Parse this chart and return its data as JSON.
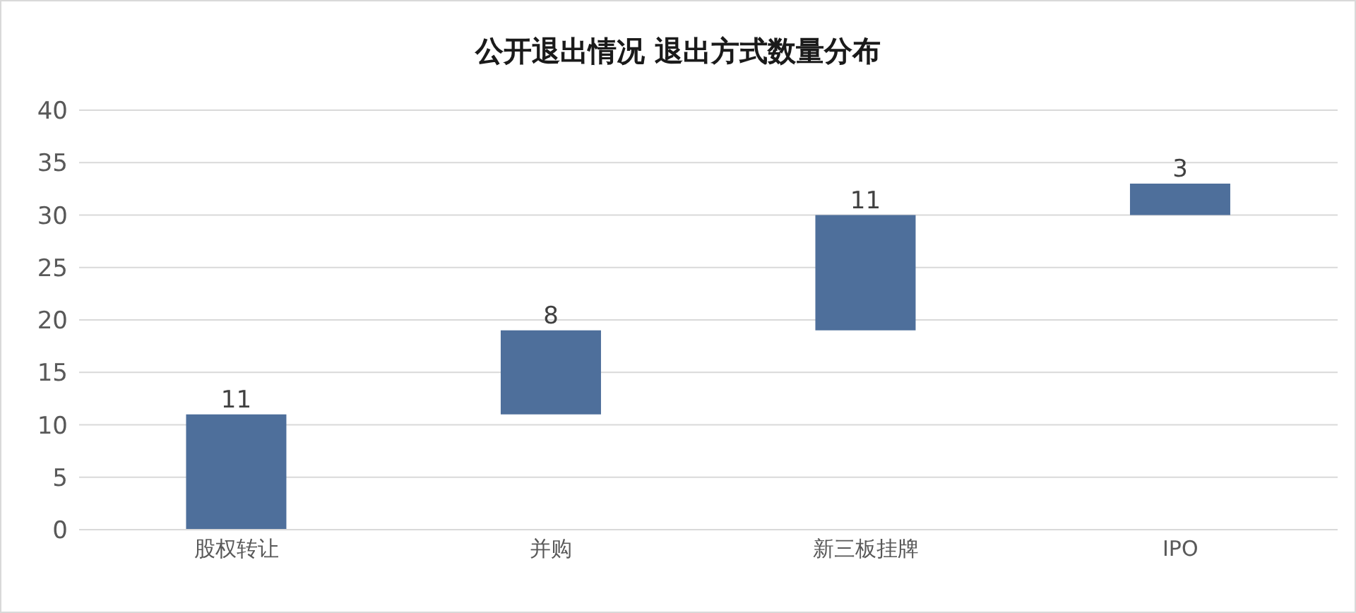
{
  "chart_data": {
    "type": "bar",
    "title": "公开退出情况 退出方式数量分布",
    "categories": [
      "股权转让",
      "并购",
      "新三板挂牌",
      "IPO"
    ],
    "values": [
      11,
      8,
      11,
      3
    ],
    "base": [
      0,
      11,
      19,
      30
    ],
    "color": "#4e6f9b",
    "ylim": [
      0,
      40
    ],
    "yticks": [
      0,
      5,
      10,
      15,
      20,
      25,
      30,
      35,
      40
    ],
    "grid": "y",
    "data_labels": true
  }
}
